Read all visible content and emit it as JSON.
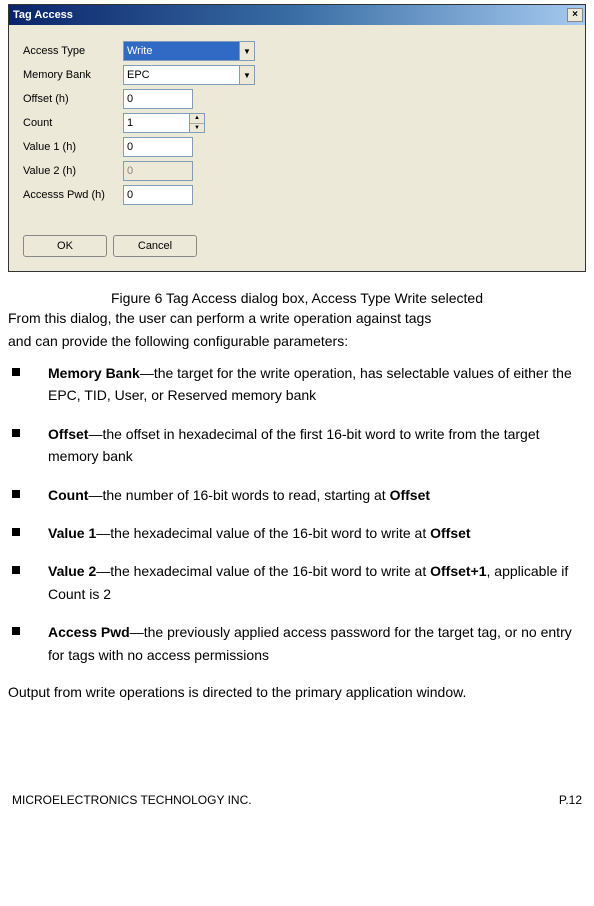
{
  "dialog": {
    "title": "Tag Access",
    "close_glyph": "×",
    "fields": {
      "access_type": {
        "label": "Access Type",
        "value": "Write"
      },
      "memory_bank": {
        "label": "Memory Bank",
        "value": "EPC"
      },
      "offset": {
        "label": "Offset (h)",
        "value": "0"
      },
      "count": {
        "label": "Count",
        "value": "1"
      },
      "value1": {
        "label": "Value 1 (h)",
        "value": "0"
      },
      "value2": {
        "label": "Value 2 (h)",
        "value": "0"
      },
      "access_pwd": {
        "label": "Accesss Pwd (h)",
        "value": "0"
      }
    },
    "buttons": {
      "ok": "OK",
      "cancel": "Cancel"
    },
    "glyphs": {
      "down": "▼",
      "up": "▲"
    }
  },
  "caption": "Figure 6 Tag Access dialog box, Access Type Write selected",
  "intro1": "From this dialog, the user can perform a write operation against tags",
  "intro2": "and can provide the following configurable parameters:",
  "bullets": {
    "b1": {
      "term": "Memory Bank",
      "text": "—the target for the write operation, has selectable values of either the EPC, TID, User, or Reserved memory bank"
    },
    "b2": {
      "term": "Offset",
      "text": "—the offset in hexadecimal of the first 16-bit word to write from the target memory bank"
    },
    "b3": {
      "term": "Count",
      "text_a": "—the number of 16-bit words to read, starting at ",
      "term_b": "Offset"
    },
    "b4": {
      "term": "Value 1",
      "text_a": "—the hexadecimal value of the 16-bit word to write at ",
      "term_b": "Offset"
    },
    "b5": {
      "term": "Value 2",
      "text_a": "—the hexadecimal value of the 16-bit word to write at ",
      "term_b": "Offset+1",
      "text_c": ", applicable if Count is 2"
    },
    "b6": {
      "term": "Access Pwd",
      "text": "—the previously applied access password for the target tag, or no entry for tags with no access permissions"
    }
  },
  "outro": "Output from write operations is directed to the primary application window.",
  "footer": {
    "left": "MICROELECTRONICS TECHNOLOGY INC.",
    "right": "P.12"
  }
}
